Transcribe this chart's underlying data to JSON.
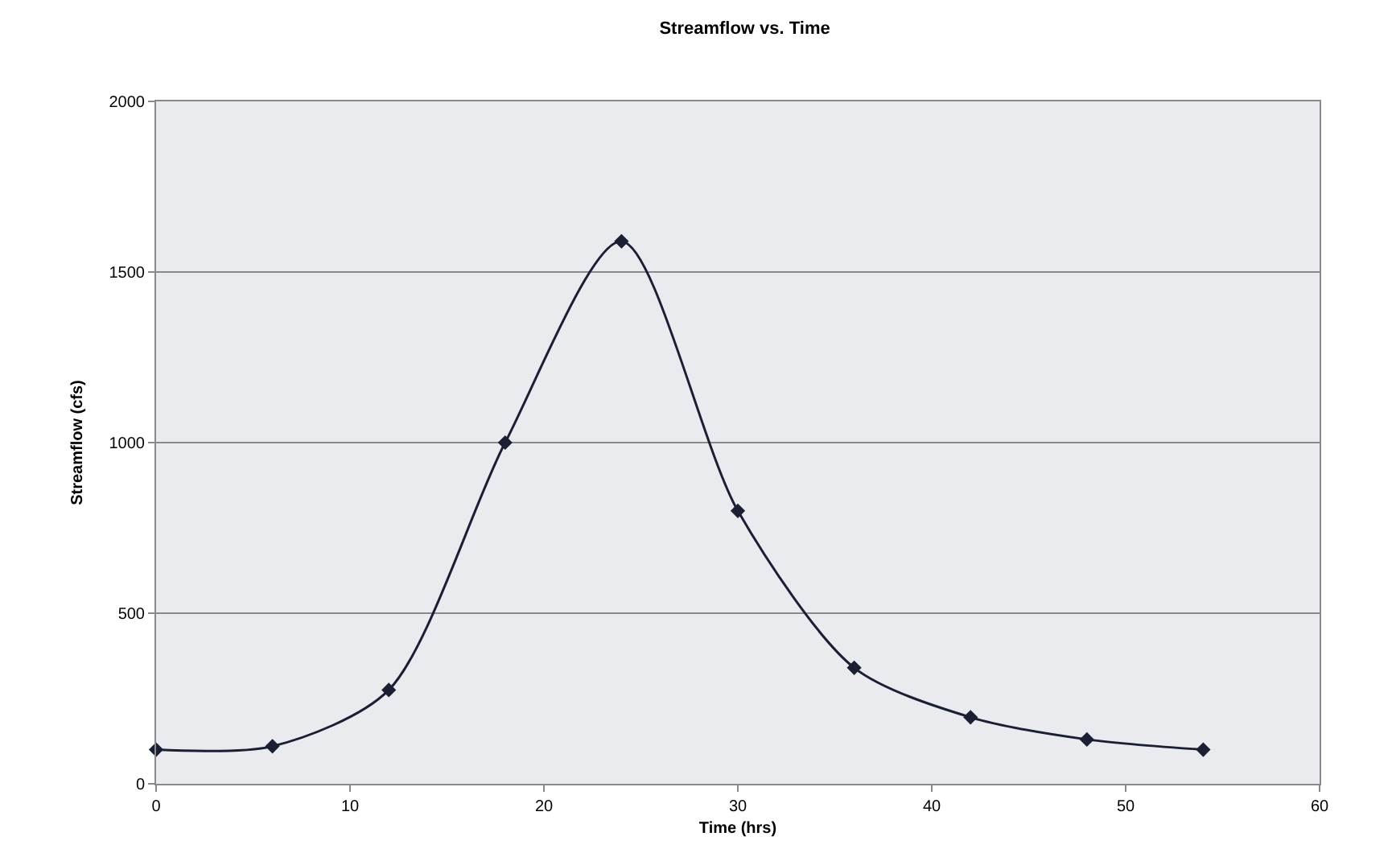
{
  "chart_data": {
    "type": "line",
    "title": "Streamflow vs. Time",
    "xlabel": "Time (hrs)",
    "ylabel": "Streamflow (cfs)",
    "x": [
      0,
      6,
      12,
      18,
      24,
      30,
      36,
      42,
      48,
      54
    ],
    "series": [
      {
        "color": "#1a1f33",
        "values": [
          100,
          110,
          275,
          1000,
          1590,
          800,
          340,
          195,
          130,
          100
        ]
      }
    ],
    "xlim": [
      0,
      60
    ],
    "xticks": [
      0,
      10,
      20,
      30,
      40,
      50,
      60
    ],
    "ylim": [
      0,
      2000
    ],
    "yticks": [
      0,
      500,
      1000,
      1500,
      2000
    ],
    "grid": "y",
    "marker": "diamond",
    "line_style": "solid"
  }
}
